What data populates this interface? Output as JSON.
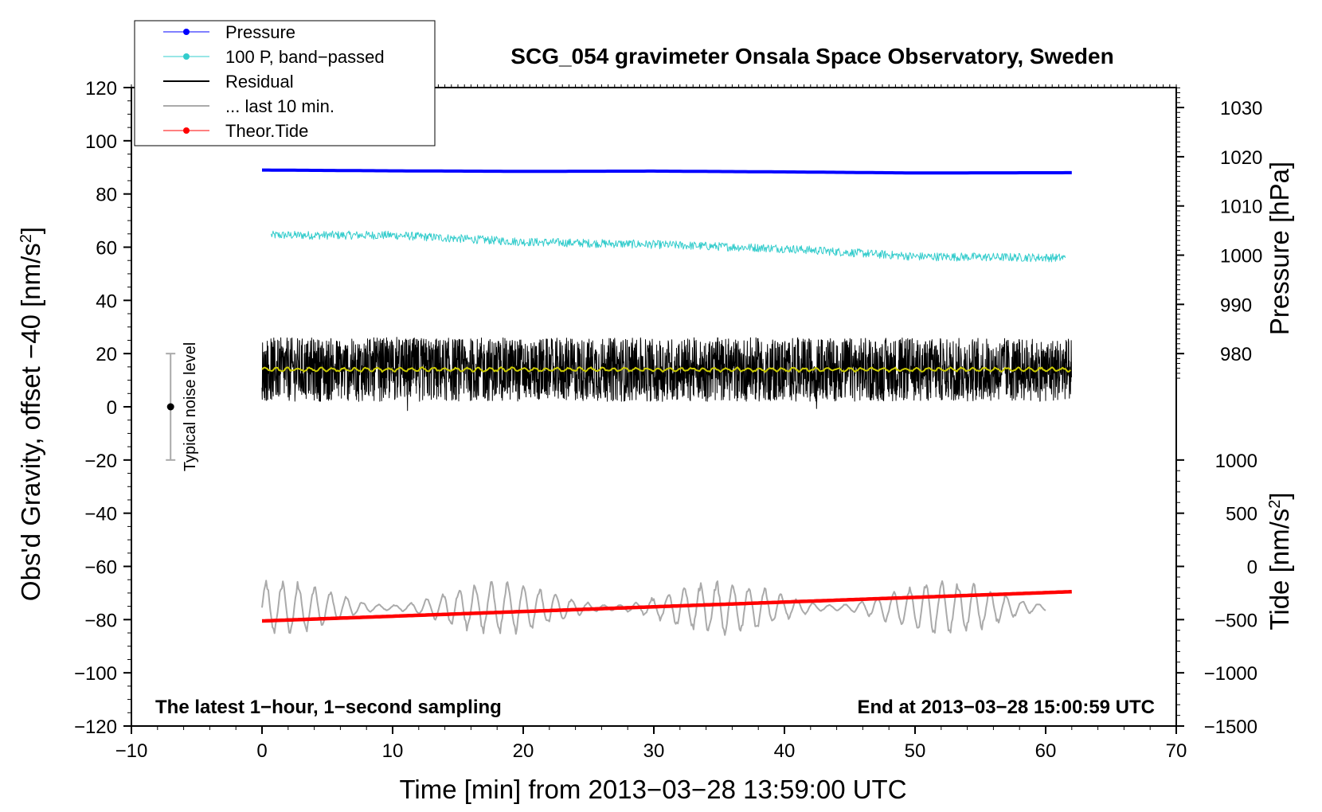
{
  "chart_data": {
    "type": "line",
    "title": "SCG_054 gravimeter Onsala Space Observatory, Sweden",
    "xlabel": "Time [min] from 2013−03−28 13:59:00 UTC",
    "ylabel_left": "Obs'd Gravity, offset −40 [nm/s",
    "ylabel_left_sup": "2",
    "ylabel_left_close": "]",
    "ylabel_right_pressure": "Pressure [hPa]",
    "ylabel_right_tide": "Tide [nm/s",
    "ylabel_right_tide_sup": "2",
    "ylabel_right_tide_close": "]",
    "xlim": [
      -10,
      70
    ],
    "ylim": [
      -120,
      120
    ],
    "x_ticks": [
      -10,
      0,
      10,
      20,
      30,
      40,
      50,
      60,
      70
    ],
    "x_tick_labels": [
      "−10",
      "0",
      "10",
      "20",
      "30",
      "40",
      "50",
      "60",
      "70"
    ],
    "y_ticks": [
      -120,
      -100,
      -80,
      -60,
      -40,
      -20,
      0,
      20,
      40,
      60,
      80,
      100,
      120
    ],
    "y_tick_labels": [
      "−120",
      "−100",
      "−80",
      "−60",
      "−40",
      "−20",
      "0",
      "20",
      "40",
      "60",
      "80",
      "100",
      "120"
    ],
    "pressure_axis": {
      "ticks": [
        980,
        990,
        1000,
        1010,
        1020,
        1030
      ],
      "tick_labels": [
        "980",
        "990",
        "1000",
        "1010",
        "1020",
        "1030"
      ],
      "left_value_at_980": 20,
      "left_units_per_hpa": 1.85
    },
    "tide_axis": {
      "ticks": [
        -1500,
        -1000,
        -500,
        0,
        500,
        1000
      ],
      "tick_labels": [
        "−1500",
        "−1000",
        "−500",
        "0",
        "500",
        "1000"
      ],
      "left_value_at_zero": -60,
      "left_units_per_nms2": 0.04
    },
    "legend": [
      {
        "label": "Pressure",
        "color": "#0000ff",
        "marker": true
      },
      {
        "label": "100 P, band−passed",
        "color": "#33cccc",
        "marker": true
      },
      {
        "label": "Residual",
        "color": "#000000",
        "marker": false
      },
      {
        "label": "... last 10 min.",
        "color": "#aaaaaa",
        "marker": false
      },
      {
        "label": "Theor.Tide",
        "color": "#ff0000",
        "marker": true
      }
    ],
    "series": [
      {
        "name": "Pressure",
        "color": "#0000ff",
        "x": [
          0,
          10,
          20,
          30,
          40,
          50,
          62
        ],
        "y": [
          89.0,
          88.7,
          88.5,
          88.6,
          88.3,
          87.9,
          88.0
        ]
      },
      {
        "name": "100 P, band-passed",
        "color": "#33cccc",
        "x": [
          0,
          10,
          20,
          30,
          40,
          50,
          62
        ],
        "y": [
          64.5,
          64.5,
          62.0,
          61.0,
          59.5,
          56.5,
          56.0
        ],
        "noise_amplitude": 1.6
      },
      {
        "name": "Residual",
        "color": "#000000",
        "x": [
          0,
          62
        ],
        "y": [
          14,
          14
        ],
        "noise_amplitude": 12
      },
      {
        "name": "Residual (smoothed)",
        "color": "#cccc00",
        "x": [
          0,
          62
        ],
        "y": [
          14,
          14
        ]
      },
      {
        "name": "... last 10 min.",
        "color": "#aaaaaa",
        "x": [
          0,
          60
        ],
        "y": [
          -75.5,
          -75.5
        ],
        "oscillation_amplitude": 9
      },
      {
        "name": "Theor.Tide",
        "color": "#ff0000",
        "x": [
          0,
          62
        ],
        "y": [
          -80.5,
          -69.5
        ]
      }
    ],
    "noise_level_marker": {
      "x": -7,
      "center": 0,
      "low": -20,
      "high": 20,
      "label": "Typical noise level"
    },
    "annotations": {
      "bottom_left": "The latest 1−hour, 1−second sampling",
      "bottom_right": "End at 2013−03−28 15:00:59 UTC"
    }
  }
}
